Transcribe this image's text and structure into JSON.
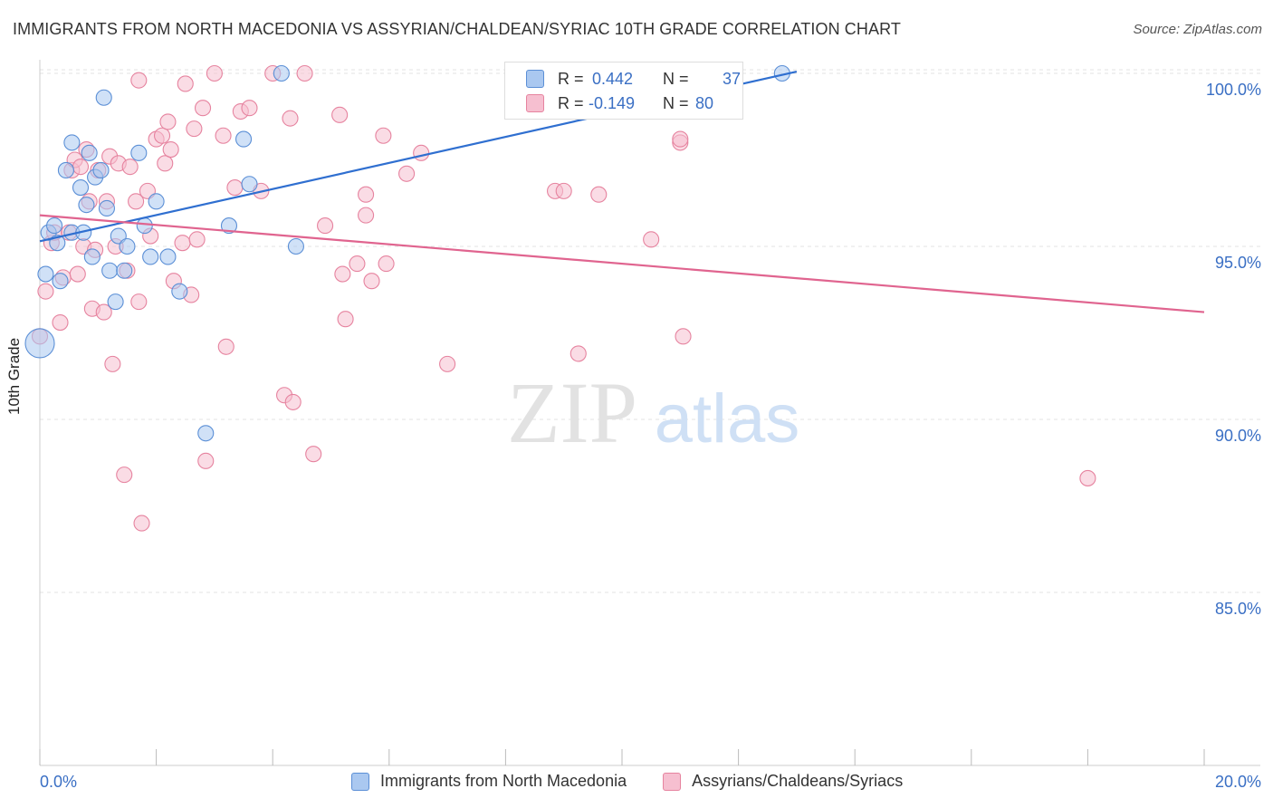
{
  "title": "IMMIGRANTS FROM NORTH MACEDONIA VS ASSYRIAN/CHALDEAN/SYRIAC 10TH GRADE CORRELATION CHART",
  "source": "Source: ZipAtlas.com",
  "watermark": {
    "zip": "ZIP",
    "atlas": "atlas"
  },
  "colors": {
    "blue_fill": "#aac8f0",
    "blue_stroke": "#5b8fd6",
    "blue_line": "#2f6fd0",
    "pink_fill": "#f6bfd0",
    "pink_stroke": "#e6839f",
    "pink_line": "#e0648f",
    "tick_text": "#3a6fc4",
    "grid": "#e3e3e3"
  },
  "stats": {
    "r_label": "R =",
    "n_label": "N =",
    "blue": {
      "r": "0.442",
      "n": "37"
    },
    "pink": {
      "r": "-0.149",
      "n": "80"
    }
  },
  "legend": {
    "blue": "Immigrants from North Macedonia",
    "pink": "Assyrians/Chaldeans/Syriacs"
  },
  "chart_data": {
    "type": "scatter",
    "title": "IMMIGRANTS FROM NORTH MACEDONIA VS ASSYRIAN/CHALDEAN/SYRIAC 10TH GRADE CORRELATION CHART",
    "xlabel": "",
    "ylabel": "10th Grade",
    "xlim": [
      0,
      20
    ],
    "ylim": [
      80.5,
      100.8
    ],
    "x_tick_labels": [
      "0.0%",
      "20.0%"
    ],
    "y_ticks": [
      85,
      90,
      95,
      100
    ],
    "y_tick_labels": [
      "85.0%",
      "90.0%",
      "95.0%",
      "100.0%"
    ],
    "grid": true,
    "series": [
      {
        "name": "Immigrants from North Macedonia",
        "color": "#5b8fd6",
        "trend": {
          "x": [
            0,
            13.0
          ],
          "y": [
            95.15,
            100.05
          ]
        },
        "points": [
          [
            0.0,
            92.2
          ],
          [
            0.15,
            95.4
          ],
          [
            0.25,
            95.6
          ],
          [
            0.3,
            95.1
          ],
          [
            0.35,
            94.0
          ],
          [
            0.1,
            94.2
          ],
          [
            0.45,
            97.2
          ],
          [
            0.55,
            95.4
          ],
          [
            0.55,
            98.0
          ],
          [
            0.7,
            96.7
          ],
          [
            0.75,
            95.4
          ],
          [
            0.8,
            96.2
          ],
          [
            0.85,
            97.7
          ],
          [
            0.9,
            94.7
          ],
          [
            0.95,
            97.0
          ],
          [
            1.05,
            97.2
          ],
          [
            1.1,
            99.3
          ],
          [
            1.15,
            96.1
          ],
          [
            1.2,
            94.3
          ],
          [
            1.3,
            93.4
          ],
          [
            1.35,
            95.3
          ],
          [
            1.45,
            94.3
          ],
          [
            1.5,
            95.0
          ],
          [
            1.7,
            97.7
          ],
          [
            1.8,
            95.6
          ],
          [
            1.9,
            94.7
          ],
          [
            2.0,
            96.3
          ],
          [
            2.2,
            94.7
          ],
          [
            2.4,
            93.7
          ],
          [
            2.85,
            89.6
          ],
          [
            3.25,
            95.6
          ],
          [
            3.5,
            98.1
          ],
          [
            3.6,
            96.8
          ],
          [
            4.15,
            100.0
          ],
          [
            4.4,
            95.0
          ],
          [
            8.15,
            100.0
          ],
          [
            12.75,
            100.0
          ]
        ]
      },
      {
        "name": "Assyrians/Chaldeans/Syriacs",
        "color": "#e6839f",
        "trend": {
          "x": [
            0,
            20
          ],
          "y": [
            95.9,
            93.1
          ]
        },
        "points": [
          [
            0.0,
            92.4
          ],
          [
            0.1,
            93.7
          ],
          [
            0.2,
            95.1
          ],
          [
            0.25,
            95.4
          ],
          [
            0.35,
            92.8
          ],
          [
            0.4,
            94.1
          ],
          [
            0.5,
            95.4
          ],
          [
            0.55,
            97.2
          ],
          [
            0.6,
            97.5
          ],
          [
            0.65,
            94.2
          ],
          [
            0.7,
            97.3
          ],
          [
            0.75,
            95.0
          ],
          [
            0.8,
            97.8
          ],
          [
            0.85,
            96.3
          ],
          [
            0.9,
            93.2
          ],
          [
            0.95,
            94.9
          ],
          [
            1.0,
            97.2
          ],
          [
            1.1,
            93.1
          ],
          [
            1.15,
            96.3
          ],
          [
            1.2,
            97.6
          ],
          [
            1.25,
            91.6
          ],
          [
            1.3,
            95.0
          ],
          [
            1.35,
            97.4
          ],
          [
            1.45,
            88.4
          ],
          [
            1.5,
            94.3
          ],
          [
            1.55,
            97.3
          ],
          [
            1.65,
            96.3
          ],
          [
            1.7,
            99.8
          ],
          [
            1.7,
            93.4
          ],
          [
            1.75,
            87.0
          ],
          [
            1.85,
            96.6
          ],
          [
            1.9,
            95.3
          ],
          [
            2.0,
            98.1
          ],
          [
            2.1,
            98.2
          ],
          [
            2.15,
            97.4
          ],
          [
            2.2,
            98.6
          ],
          [
            2.25,
            97.8
          ],
          [
            2.3,
            94.0
          ],
          [
            2.45,
            95.1
          ],
          [
            2.5,
            99.7
          ],
          [
            2.6,
            93.6
          ],
          [
            2.65,
            98.4
          ],
          [
            2.7,
            95.2
          ],
          [
            2.8,
            99.0
          ],
          [
            2.85,
            88.8
          ],
          [
            3.0,
            100.0
          ],
          [
            3.15,
            98.2
          ],
          [
            3.2,
            92.1
          ],
          [
            3.35,
            96.7
          ],
          [
            3.45,
            98.9
          ],
          [
            3.6,
            99.0
          ],
          [
            3.8,
            96.6
          ],
          [
            4.0,
            100.0
          ],
          [
            4.2,
            90.7
          ],
          [
            4.3,
            98.7
          ],
          [
            4.35,
            90.5
          ],
          [
            4.55,
            100.0
          ],
          [
            4.7,
            89.0
          ],
          [
            4.9,
            95.6
          ],
          [
            5.15,
            98.8
          ],
          [
            5.2,
            94.2
          ],
          [
            5.25,
            92.9
          ],
          [
            5.45,
            94.5
          ],
          [
            5.6,
            96.5
          ],
          [
            5.6,
            95.9
          ],
          [
            5.7,
            94.0
          ],
          [
            5.9,
            98.2
          ],
          [
            5.95,
            94.5
          ],
          [
            6.3,
            97.1
          ],
          [
            6.55,
            97.7
          ],
          [
            7.0,
            91.6
          ],
          [
            8.85,
            96.6
          ],
          [
            9.25,
            91.9
          ],
          [
            9.6,
            96.5
          ],
          [
            10.5,
            95.2
          ],
          [
            11.0,
            98.0
          ],
          [
            11.0,
            98.1
          ],
          [
            11.05,
            92.4
          ],
          [
            18.0,
            88.3
          ],
          [
            9.0,
            96.6
          ]
        ]
      }
    ]
  }
}
